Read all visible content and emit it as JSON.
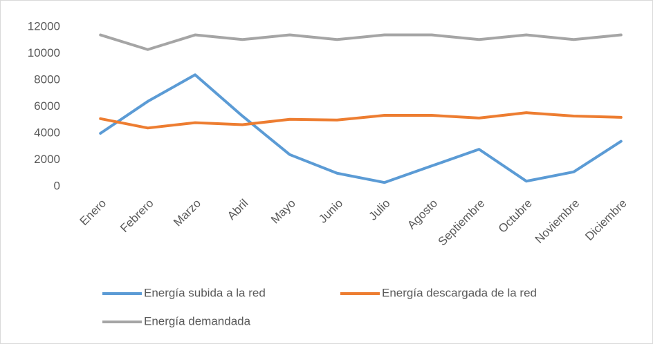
{
  "chart_data": {
    "type": "line",
    "categories": [
      "Enero",
      "Febrero",
      "Marzo",
      "Abril",
      "Mayo",
      "Junio",
      "Julio",
      "Agosto",
      "Septiembre",
      "Octubre",
      "Noviembre",
      "Diciembre"
    ],
    "series": [
      {
        "name": "Energía subida a la red",
        "color": "#5b9bd5",
        "values": [
          4000,
          6400,
          8400,
          5300,
          2400,
          1000,
          300,
          1550,
          2800,
          400,
          1100,
          3400
        ]
      },
      {
        "name": "Energía descargada de la red",
        "color": "#ed7d31",
        "values": [
          5100,
          4400,
          4800,
          4650,
          5050,
          5000,
          5350,
          5350,
          5150,
          5550,
          5300,
          5200
        ]
      },
      {
        "name": "Energía demandada",
        "color": "#a5a5a5",
        "values": [
          11400,
          10300,
          11400,
          11050,
          11400,
          11050,
          11400,
          11400,
          11050,
          11400,
          11050,
          11400
        ]
      }
    ],
    "ylim": [
      0,
      12000
    ],
    "yticks": [
      0,
      2000,
      4000,
      6000,
      8000,
      10000,
      12000
    ],
    "grid": false,
    "legend": "bottom"
  }
}
